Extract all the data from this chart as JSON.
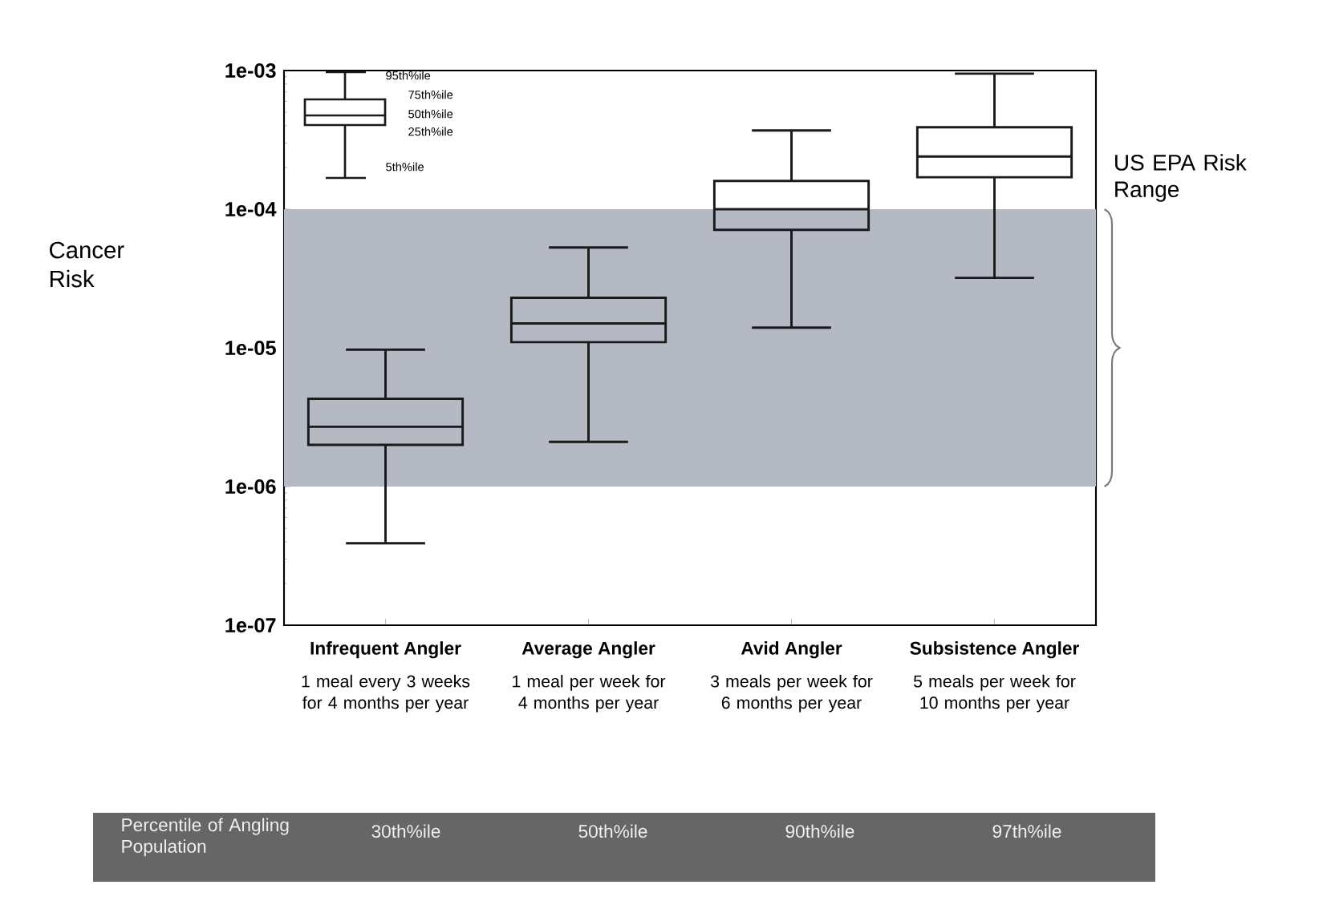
{
  "chart_data": {
    "type": "box",
    "categories": [
      "Infrequent Angler",
      "Average Angler",
      "Avid Angler",
      "Subsistence Angler"
    ],
    "boxes": [
      {
        "low": 3.9e-07,
        "q1": 2e-06,
        "median": 2.7e-06,
        "q3": 4.3e-06,
        "high": 9.7e-06
      },
      {
        "low": 2.1e-06,
        "q1": 1.1e-05,
        "median": 1.5e-05,
        "q3": 2.3e-05,
        "high": 5.3e-05
      },
      {
        "low": 1.4e-05,
        "q1": 7.1e-05,
        "median": 0.0001,
        "q3": 0.00016,
        "high": 0.00037
      },
      {
        "low": 3.2e-05,
        "q1": 0.00017,
        "median": 0.00024,
        "q3": 0.00039,
        "high": 0.00095
      }
    ],
    "color": "#1a1a1a",
    "log": true,
    "ylim": [
      1e-07,
      0.001
    ],
    "yticks": [
      {
        "value": 1e-07,
        "label": "1e-07"
      },
      {
        "value": 1e-06,
        "label": "1e-06"
      },
      {
        "value": 1e-05,
        "label": "1e-05"
      },
      {
        "value": 0.0001,
        "label": "1e-04"
      },
      {
        "value": 0.001,
        "label": "1e-03"
      }
    ],
    "grid": false,
    "bands": [
      {
        "axis": "y",
        "from": 1e-06,
        "to": 0.0001,
        "label": "US EPA Risk Range",
        "color": "#b4b9c3"
      }
    ],
    "annotations": [
      "95th%ile",
      "75th%ile",
      "50th%ile",
      "25th%ile",
      "5th%ile",
      "Percentile of Angling Population",
      "30th%ile",
      "50th%ile",
      "90th%ile",
      "97th%ile",
      "Cancer Risk",
      "1 meal every 3 weeks for 4 months per year",
      "1 meal per week for 4 months per year",
      "3 meals per week for 6 months per year",
      "5 meals per week for 10 months per year"
    ]
  }
}
